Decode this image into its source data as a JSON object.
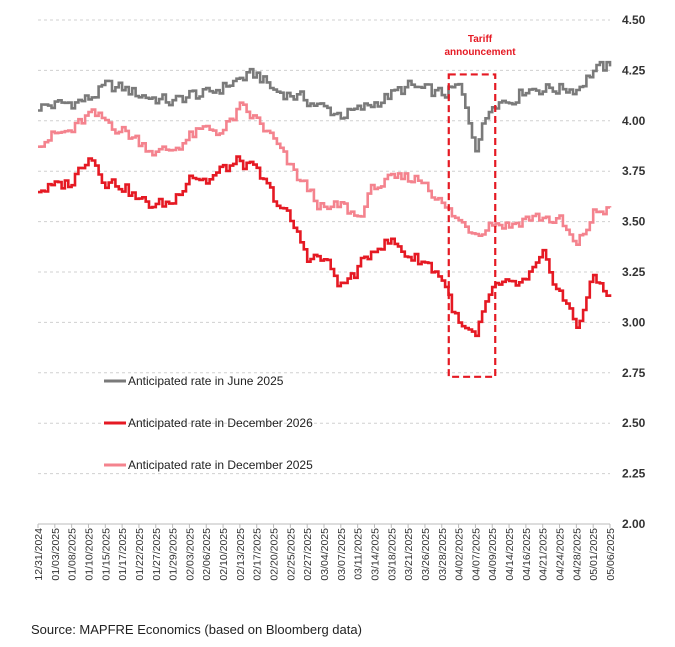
{
  "chart_data": {
    "type": "line",
    "title": "",
    "xlabel": "",
    "ylabel": "",
    "ylim": [
      2.0,
      4.5
    ],
    "y_ticks": [
      "2.00",
      "2.25",
      "2.50",
      "2.75",
      "3.00",
      "3.25",
      "3.50",
      "3.75",
      "4.00",
      "4.25",
      "4.50"
    ],
    "y_axis_side": "right",
    "grid": "horizontal dashed",
    "legend_placement": "left, inside plot",
    "x_ticks": [
      "12/31/2024",
      "01/03/2025",
      "01/08/2025",
      "01/10/2025",
      "01/15/2025",
      "01/17/2025",
      "01/22/2025",
      "01/27/2025",
      "01/29/2025",
      "02/03/2025",
      "02/06/2025",
      "02/10/2025",
      "02/13/2025",
      "02/17/2025",
      "02/20/2025",
      "02/25/2025",
      "02/27/2025",
      "03/04/2025",
      "03/07/2025",
      "03/11/2025",
      "03/14/2025",
      "03/18/2025",
      "03/21/2025",
      "03/26/2025",
      "03/28/2025",
      "04/02/2025",
      "04/07/2025",
      "04/09/2025",
      "04/14/2025",
      "04/16/2025",
      "04/21/2025",
      "04/24/2025",
      "04/28/2025",
      "05/01/2025",
      "05/06/2025"
    ],
    "series": [
      {
        "name": "Anticipated rate in June 2025",
        "color": "#7a7a7a",
        "values": [
          4.07,
          4.08,
          4.09,
          4.11,
          4.17,
          4.16,
          4.13,
          4.11,
          4.09,
          4.13,
          4.13,
          4.17,
          4.21,
          4.23,
          4.15,
          4.13,
          4.1,
          4.06,
          4.03,
          4.05,
          4.09,
          4.13,
          4.17,
          4.15,
          4.13,
          4.17,
          3.88,
          4.1,
          4.1,
          4.16,
          4.16,
          4.16,
          4.16,
          4.25,
          4.27
        ]
      },
      {
        "name": "Anticipated rate in December 2025",
        "color": "#f4838e",
        "values": [
          3.9,
          3.93,
          3.95,
          4.03,
          4.0,
          3.95,
          3.9,
          3.84,
          3.86,
          3.92,
          3.96,
          3.95,
          4.06,
          4.0,
          3.9,
          3.76,
          3.66,
          3.55,
          3.58,
          3.52,
          3.68,
          3.7,
          3.72,
          3.7,
          3.58,
          3.5,
          3.45,
          3.5,
          3.48,
          3.52,
          3.52,
          3.5,
          3.37,
          3.54,
          3.57
        ]
      },
      {
        "name": "Anticipated rate in December 2026",
        "color": "#e51923",
        "values": [
          3.66,
          3.67,
          3.7,
          3.84,
          3.7,
          3.68,
          3.6,
          3.58,
          3.6,
          3.74,
          3.7,
          3.76,
          3.8,
          3.74,
          3.62,
          3.5,
          3.33,
          3.31,
          3.18,
          3.26,
          3.38,
          3.4,
          3.33,
          3.3,
          3.22,
          2.98,
          2.92,
          3.18,
          3.18,
          3.2,
          3.32,
          3.15,
          2.98,
          3.22,
          3.14
        ]
      }
    ],
    "annotations": [
      {
        "text_lines": [
          "Tariff",
          "announcement"
        ],
        "color": "#e51923",
        "x_start": "03/28/2025",
        "x_end": "04/09/2025",
        "y_range": [
          2.73,
          4.23
        ],
        "style": "dashed box"
      }
    ]
  },
  "source_text": "Source: MAPFRE Economics (based on Bloomberg data)"
}
